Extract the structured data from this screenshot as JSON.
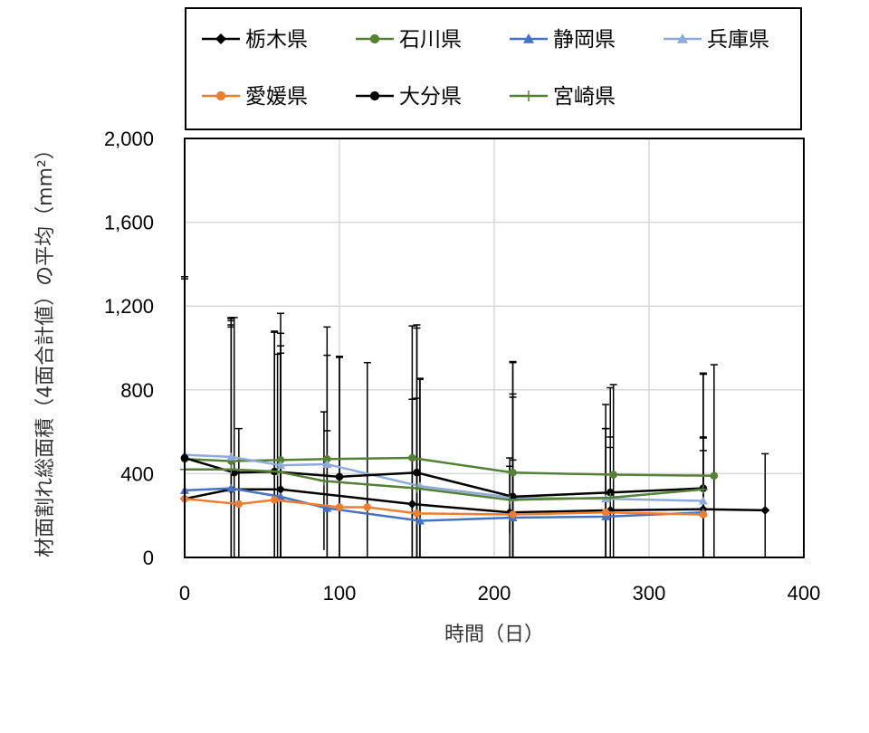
{
  "chart_data": {
    "type": "line",
    "xlabel": "時間（日）",
    "ylabel": "材面割れ総面積（4面合計値）の平均（mm²）",
    "xlim": [
      0,
      400
    ],
    "ylim": [
      0,
      2000
    ],
    "xticks": [
      0,
      100,
      200,
      300,
      400
    ],
    "xtick_labels": [
      "0",
      "100",
      "200",
      "300",
      "400"
    ],
    "yticks": [
      0,
      400,
      800,
      1200,
      1600,
      2000
    ],
    "ytick_labels": [
      "0",
      "400",
      "800",
      "1,200",
      "1,600",
      "2,000"
    ],
    "grid": true,
    "legend_position": "top",
    "series": [
      {
        "name": "栃木県",
        "color": "#000000",
        "marker": "diamond",
        "x": [
          0,
          30,
          62,
          147,
          210,
          275,
          335,
          375
        ],
        "y": [
          280,
          325,
          325,
          255,
          215,
          225,
          230,
          225
        ],
        "err": [
          1050,
          820,
          650,
          500,
          260,
          300,
          280,
          270
        ]
      },
      {
        "name": "石川県",
        "color": "#538135",
        "marker": "circle",
        "x": [
          0,
          30,
          62,
          92,
          147,
          212,
          277,
          342
        ],
        "y": [
          470,
          460,
          465,
          470,
          475,
          405,
          395,
          390
        ],
        "err": [
          0,
          650,
          700,
          630,
          630,
          530,
          430,
          530
        ]
      },
      {
        "name": "静岡県",
        "color": "#4472c4",
        "marker": "triangle",
        "x": [
          0,
          30,
          62,
          92,
          152,
          212,
          272,
          335
        ],
        "y": [
          320,
          330,
          290,
          235,
          175,
          190,
          195,
          215
        ],
        "err": [
          0,
          800,
          780,
          370,
          680,
          590,
          420,
          660
        ]
      },
      {
        "name": "兵庫県",
        "color": "#8eaadb",
        "marker": "triangle",
        "x": [
          0,
          30,
          62,
          92,
          152,
          212,
          272,
          335
        ],
        "y": [
          490,
          480,
          440,
          445,
          340,
          285,
          280,
          270
        ],
        "err": [
          850,
          660,
          570,
          520,
          510,
          480,
          450,
          300
        ]
      },
      {
        "name": "愛媛県",
        "color": "#ed7d31",
        "marker": "circle",
        "x": [
          0,
          35,
          58,
          100,
          118,
          150,
          212,
          272,
          335
        ],
        "y": [
          280,
          255,
          275,
          240,
          240,
          210,
          205,
          215,
          205
        ],
        "err": [
          0,
          360,
          800,
          720,
          690,
          550,
          260,
          400,
          370
        ]
      },
      {
        "name": "大分県",
        "color": "#000000",
        "marker": "circle",
        "x": [
          0,
          32,
          58,
          100,
          150,
          212,
          275,
          335
        ],
        "y": [
          475,
          405,
          410,
          385,
          405,
          290,
          310,
          330
        ],
        "err": [
          0,
          740,
          670,
          570,
          690,
          640,
          500,
          550
        ]
      },
      {
        "name": "宮崎県",
        "color": "#538135",
        "marker": "plus",
        "x": [
          0,
          30,
          60,
          90,
          150,
          210,
          275,
          335
        ],
        "y": [
          420,
          420,
          410,
          365,
          330,
          275,
          285,
          325
        ],
        "err": [
          0,
          680,
          560,
          330,
          780,
          160,
          290,
          550
        ]
      }
    ]
  }
}
